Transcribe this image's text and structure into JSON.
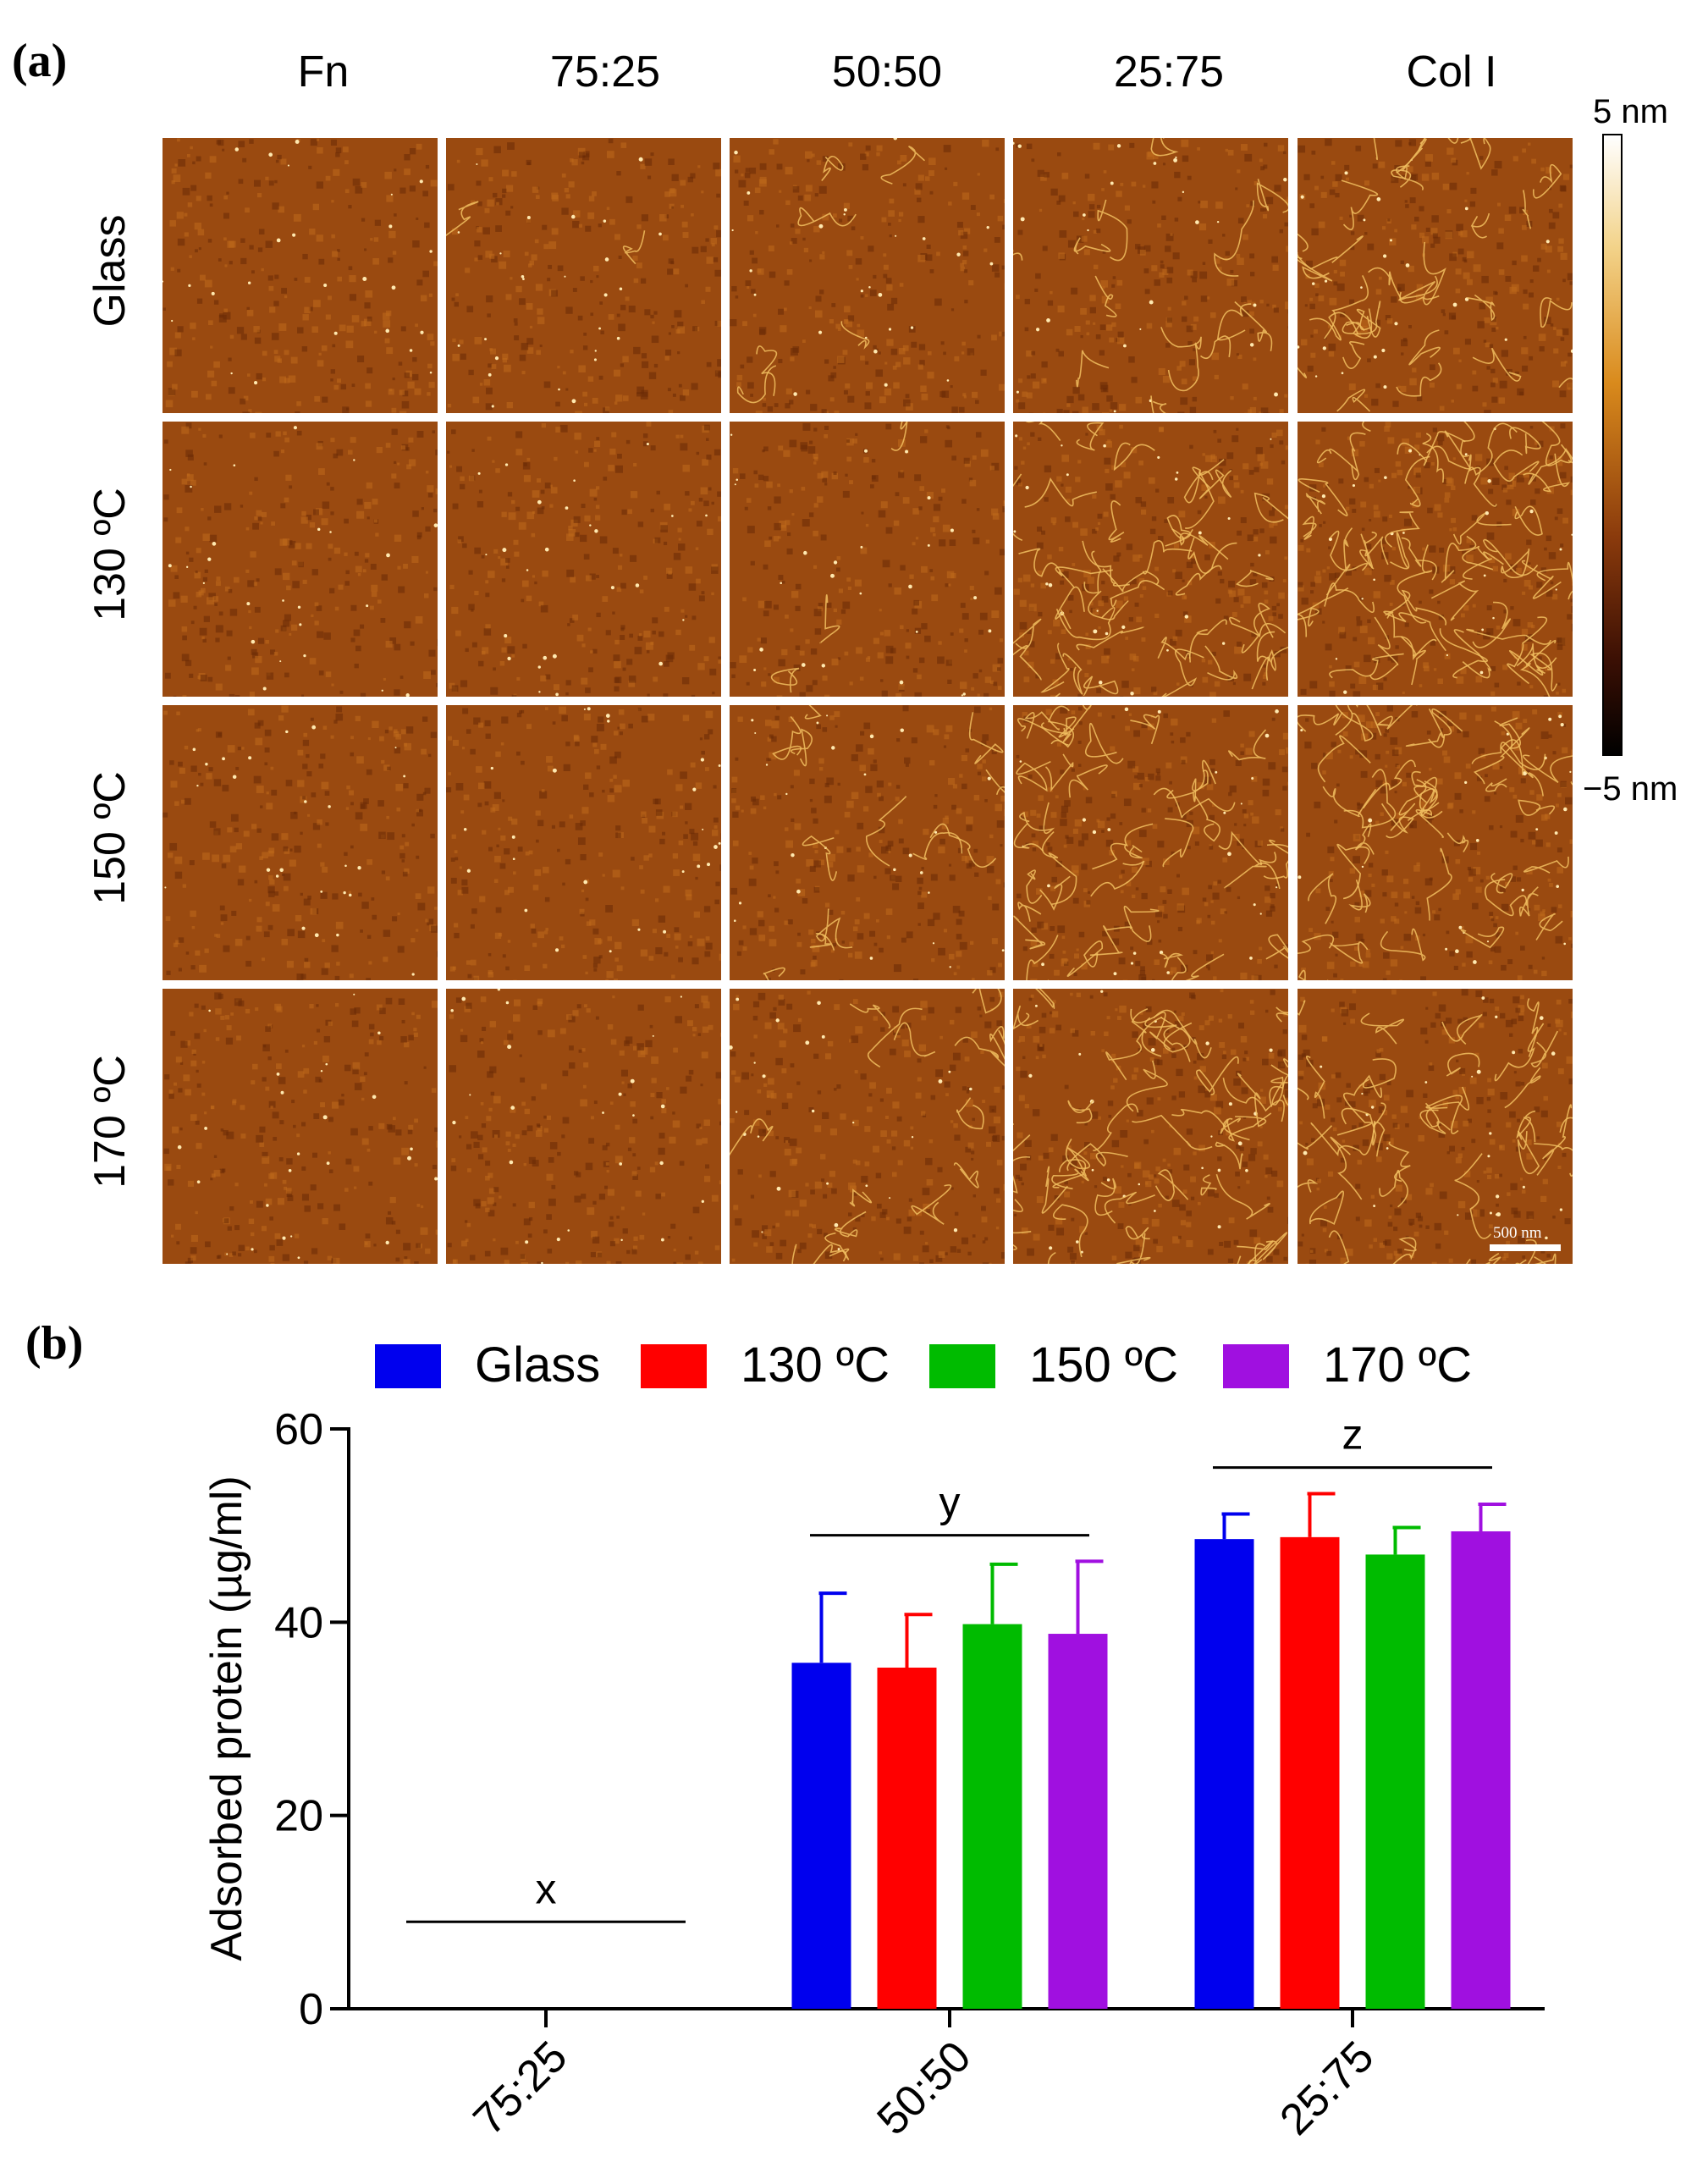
{
  "panel_a": {
    "label": "(a)",
    "columns": [
      "Fn",
      "75:25",
      "50:50",
      "25:75",
      "Col I"
    ],
    "rows": [
      "Glass",
      "130 ºC",
      "150 ºC",
      "170 ºC"
    ],
    "colorbar": {
      "max_label": "5 nm",
      "min_label": "−5 nm",
      "colors": [
        "#ffffff",
        "#f3d38a",
        "#d98a1c",
        "#8a3a0c",
        "#3a0f04",
        "#000000"
      ]
    },
    "scale_bar_label": "500 nm",
    "tile_base_color": "#9a4a10",
    "fiber_color": "#f2c060"
  },
  "panel_b": {
    "label": "(b)",
    "chart_data": {
      "type": "bar",
      "title": "",
      "xlabel": "",
      "ylabel": "Adsorbed protein (µg/ml)",
      "ylim": [
        0,
        60
      ],
      "yticks": [
        0,
        20,
        40,
        60
      ],
      "categories": [
        "75:25",
        "50:50",
        "25:75"
      ],
      "series": [
        {
          "name": "Glass",
          "color": "#0000ee",
          "values": [
            0,
            35.8,
            48.6
          ],
          "errors": [
            0,
            7.2,
            2.6
          ]
        },
        {
          "name": "130 ºC",
          "color": "#ff0000",
          "values": [
            0,
            35.3,
            48.8
          ],
          "errors": [
            0,
            5.5,
            4.5
          ]
        },
        {
          "name": "150 ºC",
          "color": "#00bb00",
          "values": [
            0,
            39.8,
            47.0
          ],
          "errors": [
            0,
            6.2,
            2.8
          ]
        },
        {
          "name": "170 ºC",
          "color": "#a010e0",
          "values": [
            0,
            38.8,
            49.4
          ],
          "errors": [
            0,
            7.5,
            2.8
          ]
        }
      ],
      "annotations": [
        {
          "text": "x",
          "category": "75:25",
          "y": 9
        },
        {
          "text": "y",
          "category": "50:50",
          "y": 49
        },
        {
          "text": "z",
          "category": "25:75",
          "y": 56
        }
      ],
      "legend_position": "top"
    }
  }
}
